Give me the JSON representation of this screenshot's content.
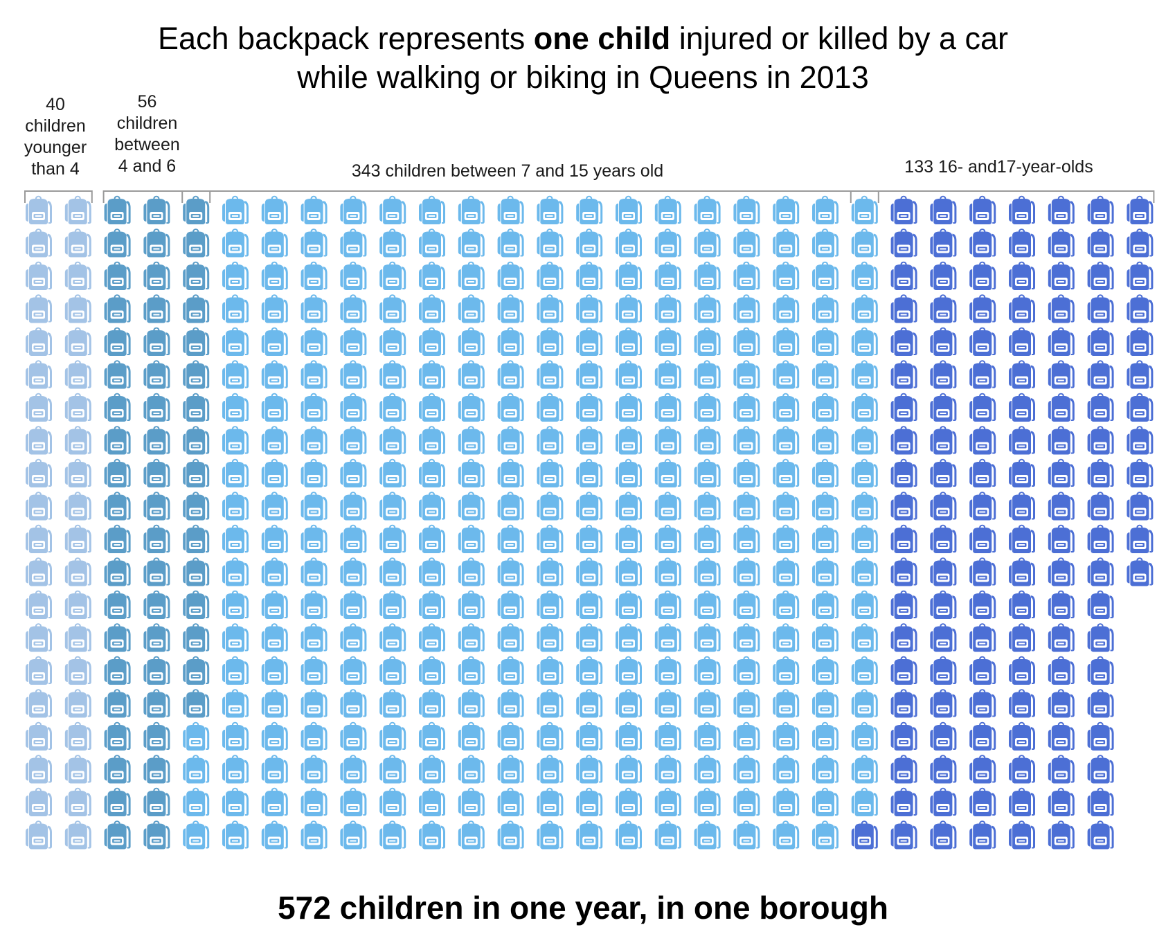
{
  "title": {
    "part1": "Each backpack represents ",
    "bold": "one child",
    "part2": " injured or killed by a car",
    "line2": "while walking or biking in Queens in 2013"
  },
  "footer": "572 children in one year, in one borough",
  "chart_data": {
    "type": "pictograph",
    "unit": "child",
    "icon": "backpack-icon",
    "rows_per_column": 20,
    "total": 572,
    "groups": [
      {
        "label": "40\nchildren\nyounger\nthan 4",
        "value": 40,
        "color": "#a3c3e6"
      },
      {
        "label": "56\nchildren\nbetween\n4 and 6",
        "value": 56,
        "color": "#5b9dc8"
      },
      {
        "label": "343 children between 7 and 15 years old",
        "value": 343,
        "color": "#6cb9ec"
      },
      {
        "label": "133 16- and17-year-olds",
        "value": 133,
        "color": "#4c6fd5"
      }
    ]
  }
}
